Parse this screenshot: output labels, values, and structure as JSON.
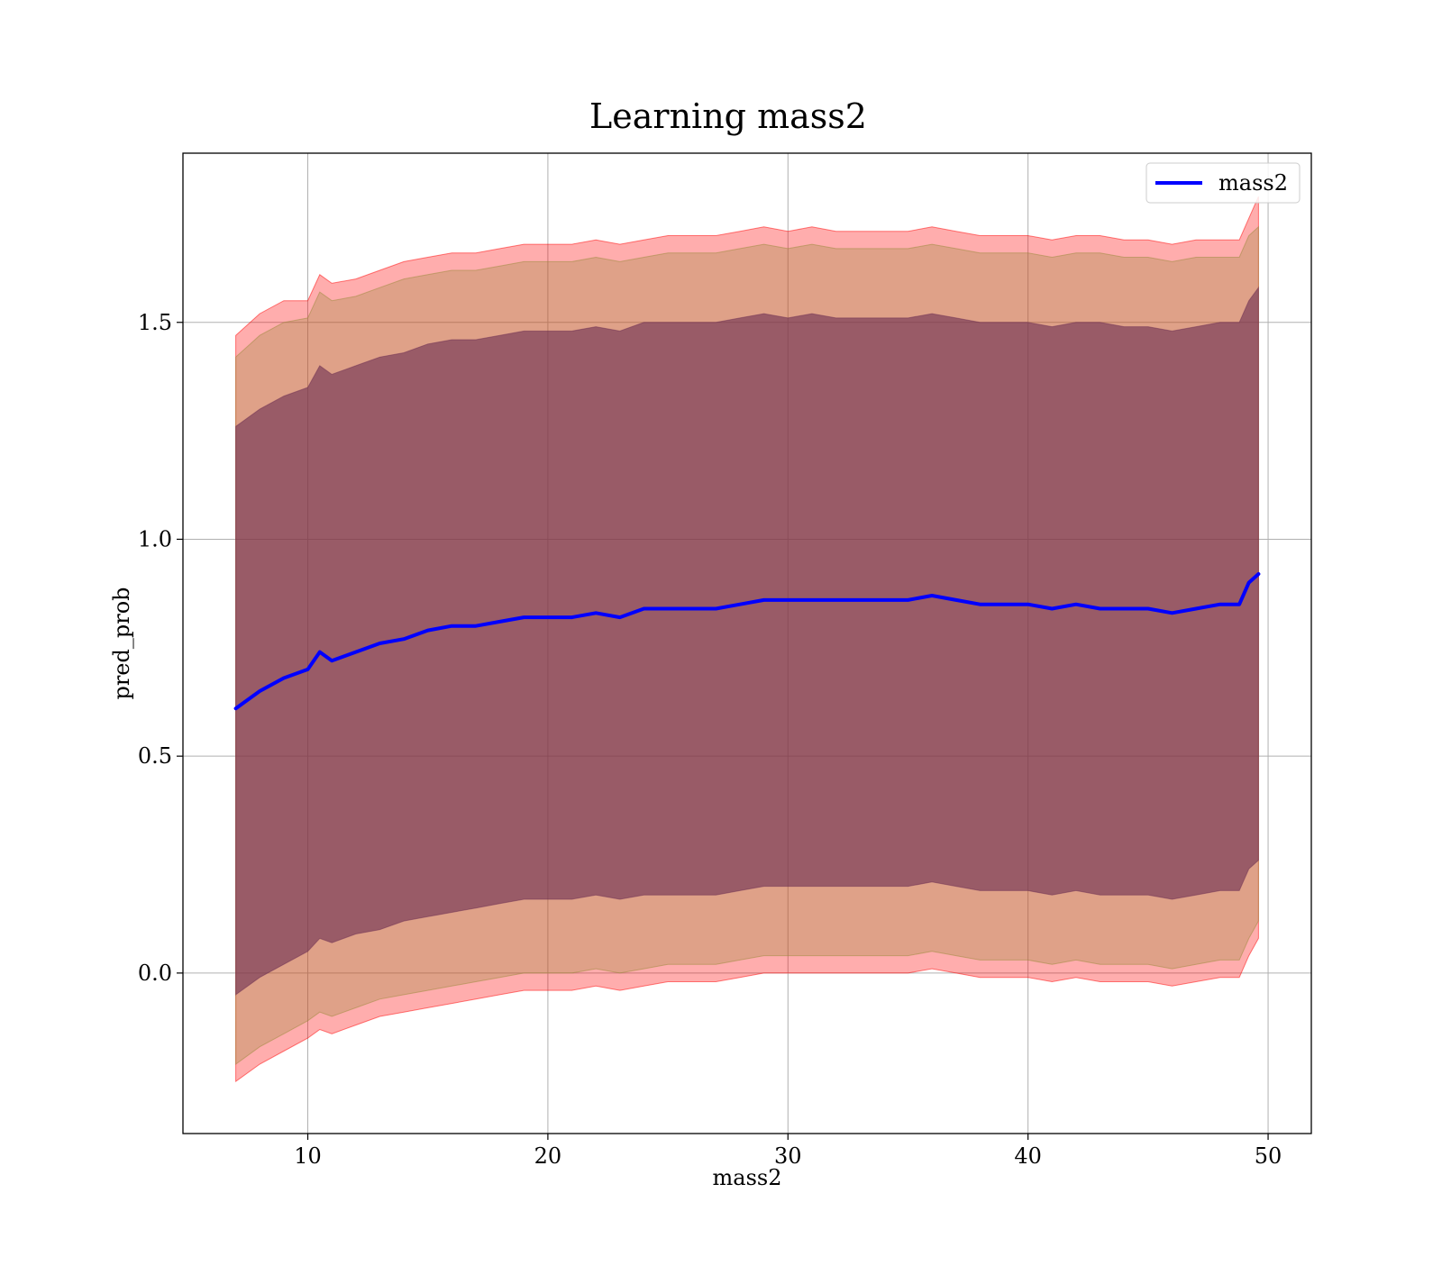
{
  "chart_data": {
    "type": "line",
    "title": "Learning mass2",
    "xlabel": "mass2",
    "ylabel": "pred_prob",
    "xlim": [
      4.8,
      51.8
    ],
    "ylim": [
      -0.37,
      1.89
    ],
    "xticks": [
      10,
      20,
      30,
      40,
      50
    ],
    "xtick_labels": [
      "10",
      "20",
      "30",
      "40",
      "50"
    ],
    "yticks": [
      0.0,
      0.5,
      1.0,
      1.5
    ],
    "ytick_labels": [
      "0.0",
      "0.5",
      "1.0",
      "1.5"
    ],
    "grid": true,
    "legend_position": "top-right",
    "series": [
      {
        "name": "mass2",
        "color": "#0000ff",
        "x": [
          7,
          8,
          9,
          10,
          10.5,
          11,
          12,
          13,
          14,
          15,
          16,
          17,
          18,
          19,
          20,
          21,
          22,
          23,
          24,
          25,
          26,
          27,
          28,
          29,
          30,
          31,
          32,
          33,
          34,
          35,
          36,
          37,
          38,
          39,
          40,
          41,
          42,
          43,
          44,
          45,
          46,
          47,
          48,
          48.8,
          49.2,
          49.6
        ],
        "y": [
          0.61,
          0.65,
          0.68,
          0.7,
          0.74,
          0.72,
          0.74,
          0.76,
          0.77,
          0.79,
          0.8,
          0.8,
          0.81,
          0.82,
          0.82,
          0.82,
          0.83,
          0.82,
          0.84,
          0.84,
          0.84,
          0.84,
          0.85,
          0.86,
          0.86,
          0.86,
          0.86,
          0.86,
          0.86,
          0.86,
          0.87,
          0.86,
          0.85,
          0.85,
          0.85,
          0.84,
          0.85,
          0.84,
          0.84,
          0.84,
          0.83,
          0.84,
          0.85,
          0.85,
          0.9,
          0.92
        ]
      }
    ],
    "bands": [
      {
        "color": "#ff0000",
        "opacity": 0.32,
        "x": [
          7,
          8,
          9,
          10,
          10.5,
          11,
          12,
          13,
          14,
          15,
          16,
          17,
          18,
          19,
          20,
          21,
          22,
          23,
          24,
          25,
          26,
          27,
          28,
          29,
          30,
          31,
          32,
          33,
          34,
          35,
          36,
          37,
          38,
          39,
          40,
          41,
          42,
          43,
          44,
          45,
          46,
          47,
          48,
          48.8,
          49.2,
          49.6
        ],
        "upper": [
          1.47,
          1.52,
          1.55,
          1.55,
          1.61,
          1.59,
          1.6,
          1.62,
          1.64,
          1.65,
          1.66,
          1.66,
          1.67,
          1.68,
          1.68,
          1.68,
          1.69,
          1.68,
          1.69,
          1.7,
          1.7,
          1.7,
          1.71,
          1.72,
          1.71,
          1.72,
          1.71,
          1.71,
          1.71,
          1.71,
          1.72,
          1.71,
          1.7,
          1.7,
          1.7,
          1.69,
          1.7,
          1.7,
          1.69,
          1.69,
          1.68,
          1.69,
          1.69,
          1.69,
          1.74,
          1.79
        ],
        "lower": [
          -0.25,
          -0.21,
          -0.18,
          -0.15,
          -0.13,
          -0.14,
          -0.12,
          -0.1,
          -0.09,
          -0.08,
          -0.07,
          -0.06,
          -0.05,
          -0.04,
          -0.04,
          -0.04,
          -0.03,
          -0.04,
          -0.03,
          -0.02,
          -0.02,
          -0.02,
          -0.01,
          0.0,
          0.0,
          0.0,
          0.0,
          0.0,
          0.0,
          0.0,
          0.01,
          0.0,
          -0.01,
          -0.01,
          -0.01,
          -0.02,
          -0.01,
          -0.02,
          -0.02,
          -0.02,
          -0.03,
          -0.02,
          -0.01,
          -0.01,
          0.04,
          0.08
        ]
      },
      {
        "color": "#9a8a3a",
        "opacity": 0.32,
        "x": [
          7,
          8,
          9,
          10,
          10.5,
          11,
          12,
          13,
          14,
          15,
          16,
          17,
          18,
          19,
          20,
          21,
          22,
          23,
          24,
          25,
          26,
          27,
          28,
          29,
          30,
          31,
          32,
          33,
          34,
          35,
          36,
          37,
          38,
          39,
          40,
          41,
          42,
          43,
          44,
          45,
          46,
          47,
          48,
          48.8,
          49.2,
          49.6
        ],
        "upper": [
          1.42,
          1.47,
          1.5,
          1.51,
          1.57,
          1.55,
          1.56,
          1.58,
          1.6,
          1.61,
          1.62,
          1.62,
          1.63,
          1.64,
          1.64,
          1.64,
          1.65,
          1.64,
          1.65,
          1.66,
          1.66,
          1.66,
          1.67,
          1.68,
          1.67,
          1.68,
          1.67,
          1.67,
          1.67,
          1.67,
          1.68,
          1.67,
          1.66,
          1.66,
          1.66,
          1.65,
          1.66,
          1.66,
          1.65,
          1.65,
          1.64,
          1.65,
          1.65,
          1.65,
          1.7,
          1.72
        ],
        "lower": [
          -0.21,
          -0.17,
          -0.14,
          -0.11,
          -0.09,
          -0.1,
          -0.08,
          -0.06,
          -0.05,
          -0.04,
          -0.03,
          -0.02,
          -0.01,
          0.0,
          0.0,
          0.0,
          0.01,
          0.0,
          0.01,
          0.02,
          0.02,
          0.02,
          0.03,
          0.04,
          0.04,
          0.04,
          0.04,
          0.04,
          0.04,
          0.04,
          0.05,
          0.04,
          0.03,
          0.03,
          0.03,
          0.02,
          0.03,
          0.02,
          0.02,
          0.02,
          0.01,
          0.02,
          0.03,
          0.03,
          0.08,
          0.12
        ]
      },
      {
        "color": "#6b2d52",
        "opacity": 0.6,
        "x": [
          7,
          8,
          9,
          10,
          10.5,
          11,
          12,
          13,
          14,
          15,
          16,
          17,
          18,
          19,
          20,
          21,
          22,
          23,
          24,
          25,
          26,
          27,
          28,
          29,
          30,
          31,
          32,
          33,
          34,
          35,
          36,
          37,
          38,
          39,
          40,
          41,
          42,
          43,
          44,
          45,
          46,
          47,
          48,
          48.8,
          49.2,
          49.6
        ],
        "upper": [
          1.26,
          1.3,
          1.33,
          1.35,
          1.4,
          1.38,
          1.4,
          1.42,
          1.43,
          1.45,
          1.46,
          1.46,
          1.47,
          1.48,
          1.48,
          1.48,
          1.49,
          1.48,
          1.5,
          1.5,
          1.5,
          1.5,
          1.51,
          1.52,
          1.51,
          1.52,
          1.51,
          1.51,
          1.51,
          1.51,
          1.52,
          1.51,
          1.5,
          1.5,
          1.5,
          1.49,
          1.5,
          1.5,
          1.49,
          1.49,
          1.48,
          1.49,
          1.5,
          1.5,
          1.55,
          1.58
        ],
        "lower": [
          -0.05,
          -0.01,
          0.02,
          0.05,
          0.08,
          0.07,
          0.09,
          0.1,
          0.12,
          0.13,
          0.14,
          0.15,
          0.16,
          0.17,
          0.17,
          0.17,
          0.18,
          0.17,
          0.18,
          0.18,
          0.18,
          0.18,
          0.19,
          0.2,
          0.2,
          0.2,
          0.2,
          0.2,
          0.2,
          0.2,
          0.21,
          0.2,
          0.19,
          0.19,
          0.19,
          0.18,
          0.19,
          0.18,
          0.18,
          0.18,
          0.17,
          0.18,
          0.19,
          0.19,
          0.24,
          0.26
        ]
      }
    ]
  }
}
